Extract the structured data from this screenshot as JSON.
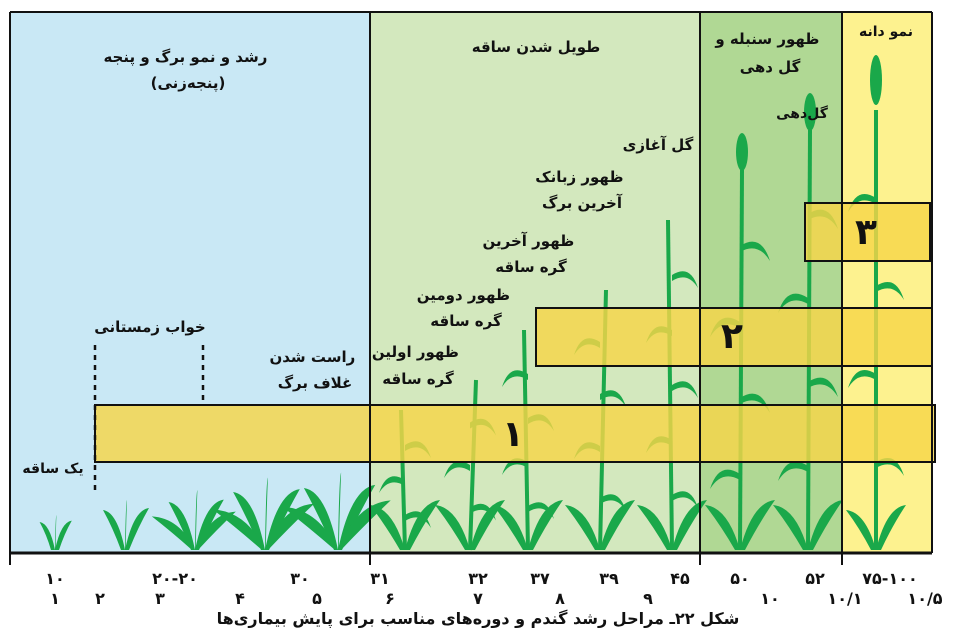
{
  "stages": [
    {
      "id": "tillering",
      "lines": [
        "رشد و نمو برگ و پنجه",
        "(پنجه‌زنی)"
      ],
      "color": "#c9e8f5"
    },
    {
      "id": "stem-elongation",
      "lines": [
        "طویل شدن ساقه"
      ],
      "color": "#d3e8be"
    },
    {
      "id": "heading",
      "lines": [
        "ظهور  سنبله  و",
        "گل دهی"
      ],
      "color": "#b0d894"
    },
    {
      "id": "grain-fill",
      "lines": [
        "نمو دانه"
      ],
      "color": "#fdf28f"
    }
  ],
  "annotations": [
    {
      "id": "one-stem",
      "lines": [
        "یک ساقه"
      ]
    },
    {
      "id": "winter-dormancy",
      "lines": [
        "خواب زمستانی"
      ]
    },
    {
      "id": "leaf-sheath-erect",
      "lines": [
        "راست شدن",
        "غلاف برگ"
      ]
    },
    {
      "id": "first-node",
      "lines": [
        "ظهور اولین",
        "گره ساقه"
      ]
    },
    {
      "id": "second-node",
      "lines": [
        "ظهور دومین",
        "گره ساقه"
      ]
    },
    {
      "id": "last-node",
      "lines": [
        "ظهور آخرین",
        "گره ساقه"
      ]
    },
    {
      "id": "flag-leaf",
      "lines": [
        "ظهور زبانک",
        "آخرین برگ"
      ]
    },
    {
      "id": "boot",
      "lines": [
        "گل آغازی"
      ]
    },
    {
      "id": "flowering",
      "lines": [
        "گل‌دهی"
      ]
    }
  ],
  "periods": [
    {
      "id": "period-1",
      "label": "۱",
      "color": "#f6d548"
    },
    {
      "id": "period-2",
      "label": "۲",
      "color": "#f6d548"
    },
    {
      "id": "period-3",
      "label": "۳",
      "color": "#f6d548"
    }
  ],
  "scale_top": [
    "۱۰",
    "۲۰-۲۰",
    "۳۰",
    "۳۱",
    "۳۲",
    "۳۷",
    "۳۹",
    "۴۵",
    "۵۰",
    "۵۲",
    "۷۵-۱۰۰"
  ],
  "scale_bottom": [
    "۱",
    "۲",
    "۳",
    "۴",
    "۵",
    "۶",
    "۷",
    "۸",
    "۹",
    "۱۰",
    "۱۰/۱",
    "۱۰/۵"
  ],
  "caption": "شکل ۲۲ـ مراحل رشد گندم و دوره‌های مناسب برای پایش بیماری‌ها",
  "plant_color": "#1aa84a"
}
